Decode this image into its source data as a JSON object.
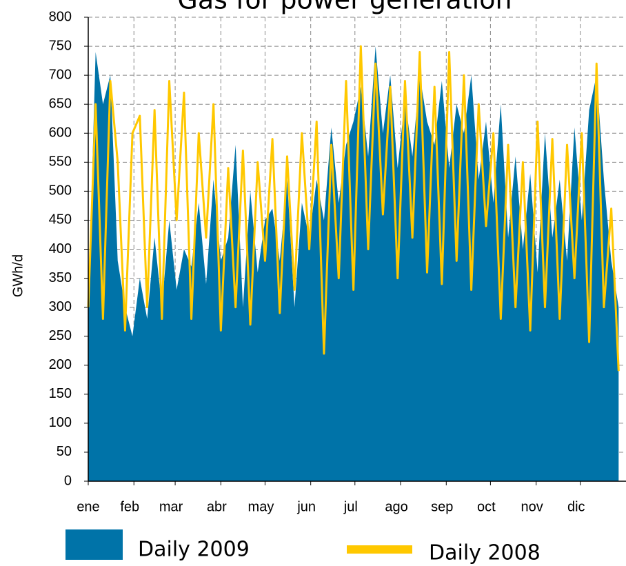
{
  "chart_data": {
    "type": "area-line",
    "title": "Gas for power generation",
    "ylabel": "GWh/d",
    "x": [
      1,
      6,
      11,
      16,
      21,
      26,
      31,
      36,
      41,
      46,
      51,
      56,
      61,
      66,
      71,
      76,
      81,
      86,
      91,
      96,
      101,
      106,
      111,
      116,
      121,
      126,
      131,
      136,
      141,
      146,
      151,
      156,
      161,
      166,
      171,
      176,
      181,
      186,
      191,
      196,
      201,
      206,
      211,
      216,
      221,
      226,
      231,
      236,
      241,
      246,
      251,
      256,
      261,
      266,
      271,
      276,
      281,
      286,
      291,
      296,
      301,
      306,
      311,
      316,
      321,
      326,
      331,
      336,
      341,
      346,
      351,
      356,
      361
    ],
    "xlim": [
      1,
      366
    ],
    "xticks": [
      {
        "value": 1,
        "label": "ene"
      },
      {
        "value": 32,
        "label": "feb"
      },
      {
        "value": 60,
        "label": "mar"
      },
      {
        "value": 91,
        "label": "abr"
      },
      {
        "value": 121,
        "label": "may"
      },
      {
        "value": 152,
        "label": "jun"
      },
      {
        "value": 182,
        "label": "jul"
      },
      {
        "value": 213,
        "label": "ago"
      },
      {
        "value": 244,
        "label": "sep"
      },
      {
        "value": 274,
        "label": "oct"
      },
      {
        "value": 305,
        "label": "nov"
      },
      {
        "value": 335,
        "label": "dic"
      }
    ],
    "ylim": [
      0,
      800
    ],
    "yticks": [
      0,
      50,
      100,
      150,
      200,
      250,
      300,
      350,
      400,
      450,
      500,
      550,
      600,
      650,
      700,
      750,
      800
    ],
    "grid": true,
    "series": [
      {
        "name": "Daily 2009",
        "color": "#0073a8",
        "kind": "area",
        "values": [
          290,
          740,
          650,
          700,
          380,
          300,
          250,
          350,
          280,
          420,
          300,
          450,
          330,
          400,
          370,
          480,
          340,
          520,
          380,
          420,
          580,
          300,
          500,
          360,
          450,
          470,
          380,
          520,
          300,
          480,
          420,
          520,
          450,
          610,
          480,
          580,
          620,
          680,
          560,
          750,
          600,
          700,
          540,
          660,
          560,
          700,
          620,
          580,
          690,
          540,
          650,
          600,
          700,
          520,
          620,
          480,
          650,
          420,
          560,
          400,
          530,
          360,
          600,
          420,
          520,
          380,
          610,
          450,
          640,
          700,
          520,
          380,
          300
        ]
      },
      {
        "name": "Daily 2008",
        "color": "#ffc800",
        "kind": "line",
        "values": [
          300,
          650,
          280,
          690,
          550,
          260,
          600,
          630,
          300,
          640,
          280,
          690,
          450,
          670,
          280,
          600,
          420,
          650,
          260,
          540,
          300,
          570,
          270,
          550,
          380,
          590,
          290,
          560,
          330,
          600,
          400,
          620,
          220,
          580,
          350,
          690,
          330,
          750,
          400,
          720,
          460,
          680,
          350,
          690,
          420,
          740,
          360,
          680,
          340,
          740,
          380,
          700,
          330,
          650,
          440,
          600,
          280,
          580,
          300,
          550,
          260,
          620,
          300,
          590,
          280,
          580,
          350,
          600,
          240,
          720,
          300,
          470,
          190
        ]
      }
    ]
  }
}
